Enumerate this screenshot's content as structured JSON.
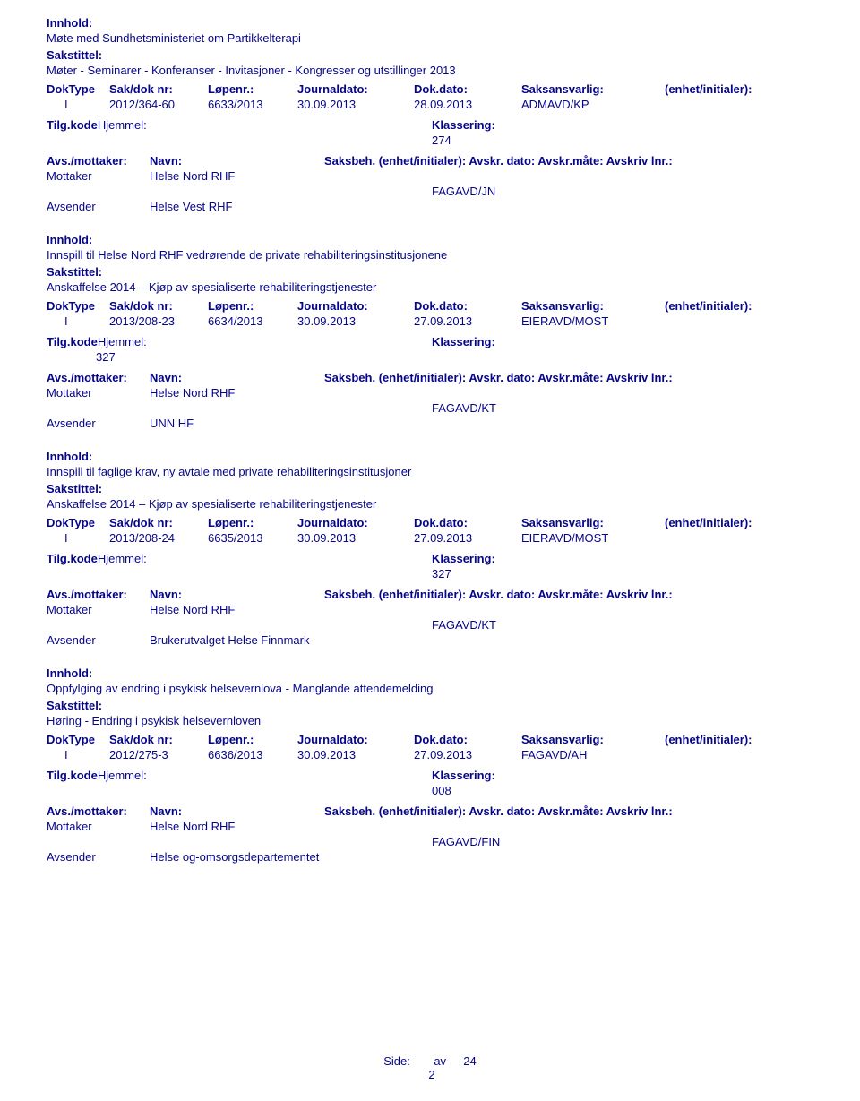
{
  "colors": {
    "text": "#05058a",
    "background": "#ffffff"
  },
  "typography": {
    "font_family": "Verdana",
    "base_size_pt": 10,
    "bold_weight": 700
  },
  "labels": {
    "innhold": "Innhold:",
    "sakstittel": "Sakstittel:",
    "doktype": "DokType",
    "sakdoknr": "Sak/dok nr:",
    "lopenr": "Løpenr.:",
    "journaldato": "Journaldato:",
    "dokdato": "Dok.dato:",
    "saksansvarlig": "Saksansvarlig:",
    "enhet_initialer": "(enhet/initialer):",
    "tilgkode": "Tilg.kode",
    "hjemmel": "Hjemmel:",
    "klassering": "Klassering:",
    "avs_mottaker": "Avs./mottaker:",
    "navn": "Navn:",
    "saksbeh_line": "Saksbeh. (enhet/initialer): Avskr. dato: Avskr.måte: Avskriv lnr.:",
    "mottaker": "Mottaker",
    "avsender": "Avsender",
    "side": "Side:",
    "av": "av"
  },
  "footer": {
    "page_current": "2",
    "page_total": "24"
  },
  "entries": [
    {
      "innhold": "Møte med Sundhetsministeriet om Partikkelterapi",
      "sakstittel": "Møter - Seminarer - Konferanser - Invitasjoner - Kongresser og utstillinger 2013",
      "doktype": "I",
      "sakdoknr": "2012/364-60",
      "lopenr": "6633/2013",
      "journaldato": "30.09.2013",
      "dokdato": "28.09.2013",
      "saksansvarlig": "ADMAVD/KP",
      "tilg_val": "",
      "klassering": "274",
      "klass_pos": "right",
      "mottaker": "Helse Nord RHF",
      "handler": "FAGAVD/JN",
      "avsender": "Helse Vest RHF"
    },
    {
      "innhold": "Innspill til Helse Nord RHF vedrørende de private rehabiliteringsinstitusjonene",
      "sakstittel": "Anskaffelse 2014 – Kjøp av spesialiserte rehabiliteringstjenester",
      "doktype": "I",
      "sakdoknr": "2013/208-23",
      "lopenr": "6634/2013",
      "journaldato": "30.09.2013",
      "dokdato": "27.09.2013",
      "saksansvarlig": "EIERAVD/MOST",
      "tilg_val": "327",
      "klassering": "",
      "klass_pos": "left",
      "mottaker": "Helse Nord RHF",
      "handler": "FAGAVD/KT",
      "avsender": "UNN HF"
    },
    {
      "innhold": "Innspill til faglige krav, ny avtale med private rehabiliteringsinstitusjoner",
      "sakstittel": "Anskaffelse 2014 – Kjøp av spesialiserte rehabiliteringstjenester",
      "doktype": "I",
      "sakdoknr": "2013/208-24",
      "lopenr": "6635/2013",
      "journaldato": "30.09.2013",
      "dokdato": "27.09.2013",
      "saksansvarlig": "EIERAVD/MOST",
      "tilg_val": "",
      "klassering": "327",
      "klass_pos": "right",
      "mottaker": "Helse Nord RHF",
      "handler": "FAGAVD/KT",
      "avsender": "Brukerutvalget Helse Finnmark"
    },
    {
      "innhold": "Oppfylging av endring i psykisk helsevernlova - Manglande attendemelding",
      "sakstittel": "Høring - Endring i psykisk helsevernloven",
      "doktype": "I",
      "sakdoknr": "2012/275-3",
      "lopenr": "6636/2013",
      "journaldato": "30.09.2013",
      "dokdato": "27.09.2013",
      "saksansvarlig": "FAGAVD/AH",
      "tilg_val": "",
      "klassering": "008",
      "klass_pos": "right",
      "mottaker": "Helse Nord RHF",
      "handler": "FAGAVD/FIN",
      "avsender": "Helse og-omsorgsdepartementet"
    }
  ]
}
